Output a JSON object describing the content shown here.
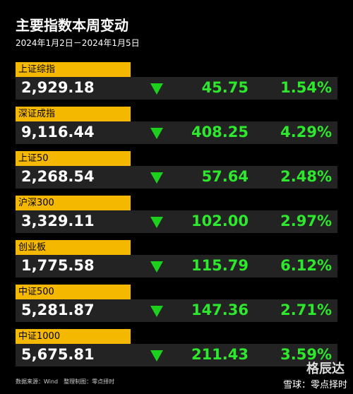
{
  "header": {
    "title": "主要指数本周变动",
    "subtitle": "2024年1月2日－2024年1月5日"
  },
  "rows": [
    {
      "name": "上证综指",
      "value": "2,929.18",
      "change": "45.75",
      "pct": "1.54%"
    },
    {
      "name": "深证成指",
      "value": "9,116.44",
      "change": "408.25",
      "pct": "4.29%"
    },
    {
      "name": "上证50",
      "value": "2,268.54",
      "change": "57.64",
      "pct": "2.48%"
    },
    {
      "name": "沪深300",
      "value": "3,329.11",
      "change": "102.00",
      "pct": "2.97%"
    },
    {
      "name": "创业板",
      "value": "1,775.58",
      "change": "115.79",
      "pct": "6.12%"
    },
    {
      "name": "中证500",
      "value": "5,281.87",
      "change": "147.36",
      "pct": "2.71%"
    },
    {
      "name": "中证1000",
      "value": "5,675.81",
      "change": "211.43",
      "pct": "3.59%"
    }
  ],
  "footer": {
    "source": "数据来源：Wind　整理制图：零点择时",
    "watermark": "格辰达",
    "credit": "雪球：零点择时"
  }
}
